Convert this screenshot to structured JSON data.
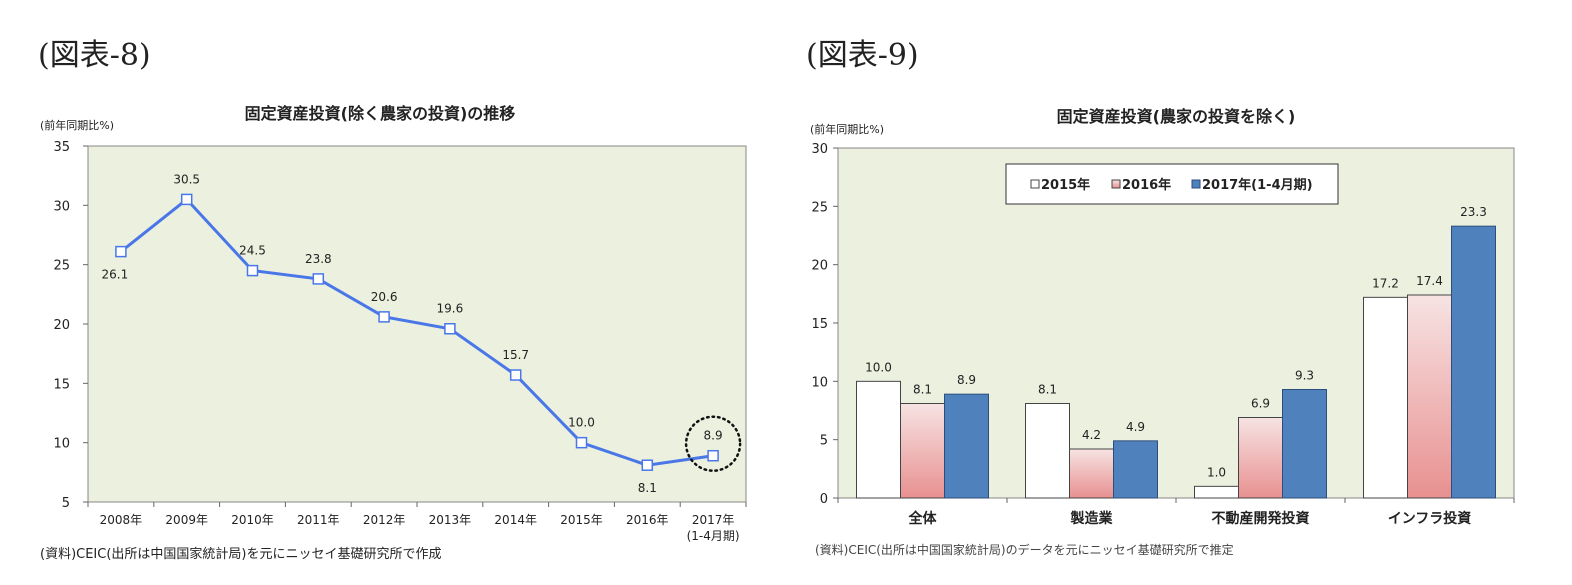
{
  "figure_labels": [
    "(図表-8)",
    "(図表-9)"
  ],
  "sources": [
    "(資料)CEIC(出所は中国国家統計局)を元にニッセイ基礎研究所で作成",
    "(資料)CEIC(出所は中国国家統計局)のデータを元にニッセイ基礎研究所で推定"
  ],
  "colors": {
    "plot_bg": "#ECF0DF",
    "line": "#4A77E8",
    "s2015": "#FFFFFF",
    "s2016_top": "#F7E3E3",
    "s2016_bottom": "#E89090",
    "s2017": "#4F81BD"
  },
  "chart_data": [
    {
      "type": "line",
      "title": "固定資産投資(除く農家の投資)の推移",
      "unit_label": "(前年同期比%)",
      "categories": [
        "2008年",
        "2009年",
        "2010年",
        "2011年",
        "2012年",
        "2013年",
        "2014年",
        "2015年",
        "2016年",
        "2017年"
      ],
      "category_sublabels": [
        "",
        "",
        "",
        "",
        "",
        "",
        "",
        "",
        "",
        "(1-4月期)"
      ],
      "values": [
        26.1,
        30.5,
        24.5,
        23.8,
        20.6,
        19.6,
        15.7,
        10.0,
        8.1,
        8.9
      ],
      "data_labels": [
        "26.1",
        "30.5",
        "24.5",
        "23.8",
        "20.6",
        "19.6",
        "15.7",
        "10.0",
        "8.1",
        "8.9"
      ],
      "ylim": [
        5,
        35
      ],
      "yticks": [
        5,
        10,
        15,
        20,
        25,
        30,
        35
      ],
      "grid": false,
      "highlight": "2017年 (dotted circle)"
    },
    {
      "type": "bar",
      "title": "固定資産投資(農家の投資を除く)",
      "unit_label": "(前年同期比%)",
      "categories": [
        "全体",
        "製造業",
        "不動産開発投資",
        "インフラ投資"
      ],
      "series": [
        {
          "name": "2015年",
          "values": [
            10.0,
            8.1,
            1.0,
            17.2
          ],
          "labels": [
            "10.0",
            "8.1",
            "1.0",
            "17.2"
          ]
        },
        {
          "name": "2016年",
          "values": [
            8.1,
            4.2,
            6.9,
            17.4
          ],
          "labels": [
            "8.1",
            "4.2",
            "6.9",
            "17.4"
          ]
        },
        {
          "name": "2017年(1-4月期)",
          "values": [
            8.9,
            4.9,
            9.3,
            23.3
          ],
          "labels": [
            "8.9",
            "4.9",
            "9.3",
            "23.3"
          ]
        }
      ],
      "ylim": [
        0,
        30
      ],
      "yticks": [
        0,
        5,
        10,
        15,
        20,
        25,
        30
      ],
      "grid": false,
      "legend": "top-center"
    }
  ]
}
